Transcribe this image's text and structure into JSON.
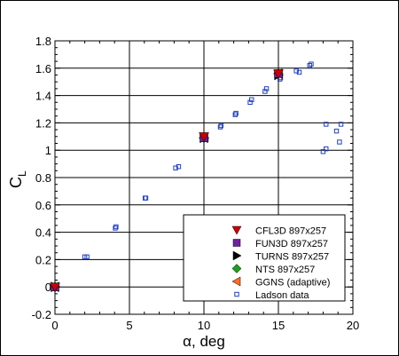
{
  "chart_data": {
    "type": "scatter",
    "xlabel": "α, deg",
    "ylabel_main": "C",
    "ylabel_sub": "L",
    "xlim": [
      0,
      20
    ],
    "ylim": [
      -0.2,
      1.8
    ],
    "xticks": [
      "0",
      "5",
      "10",
      "15",
      "20"
    ],
    "yticks": [
      "-0.2",
      "0",
      "0.2",
      "0.4",
      "0.6",
      "0.8",
      "1",
      "1.2",
      "1.4",
      "1.6",
      "1.8"
    ],
    "grid": true,
    "legend_position": "bottom-right",
    "series": [
      {
        "name": "CFL3D 897x257",
        "marker": "triangle-down",
        "color": "#cc0000",
        "points": [
          [
            0,
            0.0
          ],
          [
            10,
            1.1
          ],
          [
            15,
            1.56
          ]
        ]
      },
      {
        "name": "FUN3D 897x257",
        "marker": "square",
        "color": "#7020a0",
        "points": [
          [
            0,
            0.0
          ],
          [
            10,
            1.09
          ],
          [
            15,
            1.56
          ]
        ]
      },
      {
        "name": "TURNS 897x257",
        "marker": "triangle-right",
        "color": "#000000",
        "points": [
          [
            0,
            0.0
          ],
          [
            10,
            1.09
          ],
          [
            15,
            1.55
          ]
        ]
      },
      {
        "name": "NTS 897x257",
        "marker": "diamond",
        "color": "#20a020",
        "points": [
          [
            0,
            0.0
          ],
          [
            10,
            1.09
          ],
          [
            15,
            1.56
          ]
        ]
      },
      {
        "name": "GGNS (adaptive)",
        "marker": "triangle-left",
        "color": "#ff7020",
        "points": [
          [
            0,
            0.0
          ],
          [
            10,
            1.09
          ],
          [
            15,
            1.56
          ]
        ]
      },
      {
        "name": "Ladson data",
        "marker": "open-square",
        "color": "#2040c0",
        "points": [
          [
            0.0,
            0.0
          ],
          [
            0.05,
            0.0
          ],
          [
            2.0,
            0.22
          ],
          [
            2.15,
            0.22
          ],
          [
            4.05,
            0.43
          ],
          [
            4.1,
            0.44
          ],
          [
            6.05,
            0.65
          ],
          [
            6.1,
            0.65
          ],
          [
            8.1,
            0.87
          ],
          [
            8.3,
            0.88
          ],
          [
            10.0,
            1.08
          ],
          [
            10.15,
            1.08
          ],
          [
            11.1,
            1.17
          ],
          [
            11.15,
            1.18
          ],
          [
            12.1,
            1.26
          ],
          [
            12.15,
            1.27
          ],
          [
            13.1,
            1.35
          ],
          [
            13.2,
            1.37
          ],
          [
            14.1,
            1.43
          ],
          [
            14.2,
            1.45
          ],
          [
            15.1,
            1.52
          ],
          [
            15.15,
            1.53
          ],
          [
            16.2,
            1.58
          ],
          [
            16.4,
            1.57
          ],
          [
            17.1,
            1.62
          ],
          [
            17.2,
            1.63
          ],
          [
            18.0,
            0.99
          ],
          [
            18.2,
            1.01
          ],
          [
            18.2,
            1.19
          ],
          [
            18.9,
            1.14
          ],
          [
            19.1,
            1.06
          ],
          [
            19.2,
            1.19
          ]
        ]
      }
    ]
  }
}
